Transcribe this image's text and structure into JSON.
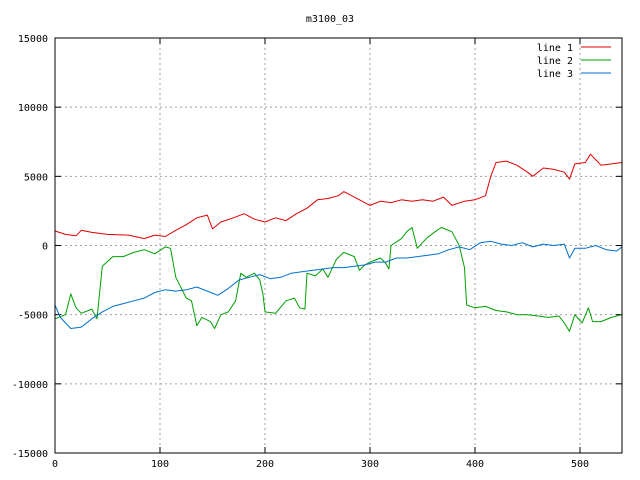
{
  "chart_data": {
    "type": "line",
    "title": "m3100_03",
    "xlabel": "",
    "ylabel": "",
    "xlim": [
      0,
      540
    ],
    "ylim": [
      -15000,
      15000
    ],
    "xticks": [
      0,
      100,
      200,
      300,
      400,
      500
    ],
    "yticks": [
      -15000,
      -10000,
      -5000,
      0,
      5000,
      10000,
      15000
    ],
    "grid": true,
    "legend_position": "top-right",
    "series": [
      {
        "name": "line 1",
        "color": "#e00000",
        "points": [
          [
            0,
            1050
          ],
          [
            10,
            800
          ],
          [
            20,
            700
          ],
          [
            25,
            1100
          ],
          [
            35,
            950
          ],
          [
            50,
            800
          ],
          [
            70,
            750
          ],
          [
            85,
            500
          ],
          [
            95,
            750
          ],
          [
            105,
            650
          ],
          [
            115,
            1100
          ],
          [
            125,
            1500
          ],
          [
            135,
            2000
          ],
          [
            145,
            2200
          ],
          [
            150,
            1200
          ],
          [
            158,
            1700
          ],
          [
            170,
            2000
          ],
          [
            180,
            2300
          ],
          [
            190,
            1900
          ],
          [
            200,
            1700
          ],
          [
            210,
            2000
          ],
          [
            220,
            1800
          ],
          [
            230,
            2300
          ],
          [
            240,
            2700
          ],
          [
            250,
            3300
          ],
          [
            260,
            3400
          ],
          [
            270,
            3600
          ],
          [
            275,
            3900
          ],
          [
            285,
            3500
          ],
          [
            300,
            2900
          ],
          [
            310,
            3200
          ],
          [
            320,
            3100
          ],
          [
            330,
            3300
          ],
          [
            340,
            3200
          ],
          [
            350,
            3300
          ],
          [
            360,
            3200
          ],
          [
            370,
            3500
          ],
          [
            378,
            2900
          ],
          [
            390,
            3200
          ],
          [
            400,
            3300
          ],
          [
            410,
            3600
          ],
          [
            415,
            5000
          ],
          [
            420,
            6000
          ],
          [
            430,
            6100
          ],
          [
            440,
            5800
          ],
          [
            450,
            5300
          ],
          [
            455,
            5000
          ],
          [
            465,
            5600
          ],
          [
            475,
            5500
          ],
          [
            485,
            5300
          ],
          [
            490,
            4800
          ],
          [
            495,
            5900
          ],
          [
            505,
            6000
          ],
          [
            510,
            6600
          ],
          [
            520,
            5800
          ],
          [
            530,
            5900
          ],
          [
            540,
            6000
          ]
        ]
      },
      {
        "name": "line 2",
        "color": "#00a000",
        "points": [
          [
            0,
            -5300
          ],
          [
            10,
            -5000
          ],
          [
            15,
            -3500
          ],
          [
            20,
            -4500
          ],
          [
            25,
            -4900
          ],
          [
            35,
            -4600
          ],
          [
            40,
            -5300
          ],
          [
            45,
            -1500
          ],
          [
            55,
            -800
          ],
          [
            65,
            -800
          ],
          [
            75,
            -500
          ],
          [
            85,
            -300
          ],
          [
            95,
            -600
          ],
          [
            105,
            -100
          ],
          [
            110,
            -200
          ],
          [
            115,
            -2300
          ],
          [
            125,
            -3800
          ],
          [
            130,
            -4000
          ],
          [
            135,
            -5800
          ],
          [
            140,
            -5200
          ],
          [
            148,
            -5500
          ],
          [
            152,
            -6000
          ],
          [
            158,
            -5000
          ],
          [
            165,
            -4800
          ],
          [
            172,
            -4000
          ],
          [
            177,
            -2000
          ],
          [
            182,
            -2300
          ],
          [
            190,
            -2000
          ],
          [
            195,
            -2500
          ],
          [
            198,
            -3500
          ],
          [
            200,
            -4800
          ],
          [
            210,
            -4900
          ],
          [
            220,
            -4000
          ],
          [
            228,
            -3800
          ],
          [
            233,
            -4500
          ],
          [
            238,
            -4600
          ],
          [
            240,
            -2000
          ],
          [
            248,
            -2200
          ],
          [
            255,
            -1700
          ],
          [
            260,
            -2300
          ],
          [
            268,
            -1000
          ],
          [
            275,
            -500
          ],
          [
            285,
            -800
          ],
          [
            290,
            -1800
          ],
          [
            295,
            -1400
          ],
          [
            300,
            -1200
          ],
          [
            310,
            -900
          ],
          [
            315,
            -1300
          ],
          [
            318,
            -1700
          ],
          [
            320,
            0
          ],
          [
            330,
            500
          ],
          [
            335,
            1000
          ],
          [
            340,
            1300
          ],
          [
            345,
            -200
          ],
          [
            350,
            200
          ],
          [
            355,
            600
          ],
          [
            362,
            1000
          ],
          [
            368,
            1300
          ],
          [
            378,
            1000
          ],
          [
            385,
            0
          ],
          [
            390,
            -1600
          ],
          [
            392,
            -4300
          ],
          [
            400,
            -4500
          ],
          [
            410,
            -4400
          ],
          [
            420,
            -4700
          ],
          [
            430,
            -4800
          ],
          [
            440,
            -5000
          ],
          [
            450,
            -5000
          ],
          [
            460,
            -5100
          ],
          [
            470,
            -5200
          ],
          [
            480,
            -5100
          ],
          [
            485,
            -5600
          ],
          [
            490,
            -6200
          ],
          [
            495,
            -5000
          ],
          [
            502,
            -5600
          ],
          [
            508,
            -4500
          ],
          [
            512,
            -5500
          ],
          [
            520,
            -5500
          ],
          [
            530,
            -5200
          ],
          [
            540,
            -5000
          ]
        ]
      },
      {
        "name": "line 3",
        "color": "#0070d0",
        "points": [
          [
            0,
            -4300
          ],
          [
            5,
            -5200
          ],
          [
            15,
            -6000
          ],
          [
            25,
            -5900
          ],
          [
            35,
            -5300
          ],
          [
            45,
            -4800
          ],
          [
            55,
            -4400
          ],
          [
            65,
            -4200
          ],
          [
            75,
            -4000
          ],
          [
            85,
            -3800
          ],
          [
            95,
            -3400
          ],
          [
            105,
            -3200
          ],
          [
            115,
            -3300
          ],
          [
            125,
            -3200
          ],
          [
            135,
            -3000
          ],
          [
            145,
            -3300
          ],
          [
            155,
            -3600
          ],
          [
            165,
            -3100
          ],
          [
            175,
            -2500
          ],
          [
            185,
            -2300
          ],
          [
            195,
            -2100
          ],
          [
            205,
            -2400
          ],
          [
            215,
            -2300
          ],
          [
            225,
            -2000
          ],
          [
            235,
            -1900
          ],
          [
            245,
            -1800
          ],
          [
            255,
            -1700
          ],
          [
            265,
            -1600
          ],
          [
            275,
            -1600
          ],
          [
            285,
            -1500
          ],
          [
            295,
            -1400
          ],
          [
            305,
            -1200
          ],
          [
            315,
            -1200
          ],
          [
            325,
            -900
          ],
          [
            335,
            -900
          ],
          [
            345,
            -800
          ],
          [
            355,
            -700
          ],
          [
            365,
            -600
          ],
          [
            375,
            -300
          ],
          [
            385,
            -100
          ],
          [
            395,
            -300
          ],
          [
            405,
            200
          ],
          [
            415,
            300
          ],
          [
            425,
            100
          ],
          [
            435,
            0
          ],
          [
            445,
            200
          ],
          [
            455,
            -100
          ],
          [
            465,
            100
          ],
          [
            475,
            0
          ],
          [
            485,
            100
          ],
          [
            490,
            -900
          ],
          [
            495,
            -200
          ],
          [
            505,
            -200
          ],
          [
            515,
            0
          ],
          [
            525,
            -300
          ],
          [
            535,
            -400
          ],
          [
            540,
            -100
          ]
        ]
      }
    ]
  }
}
